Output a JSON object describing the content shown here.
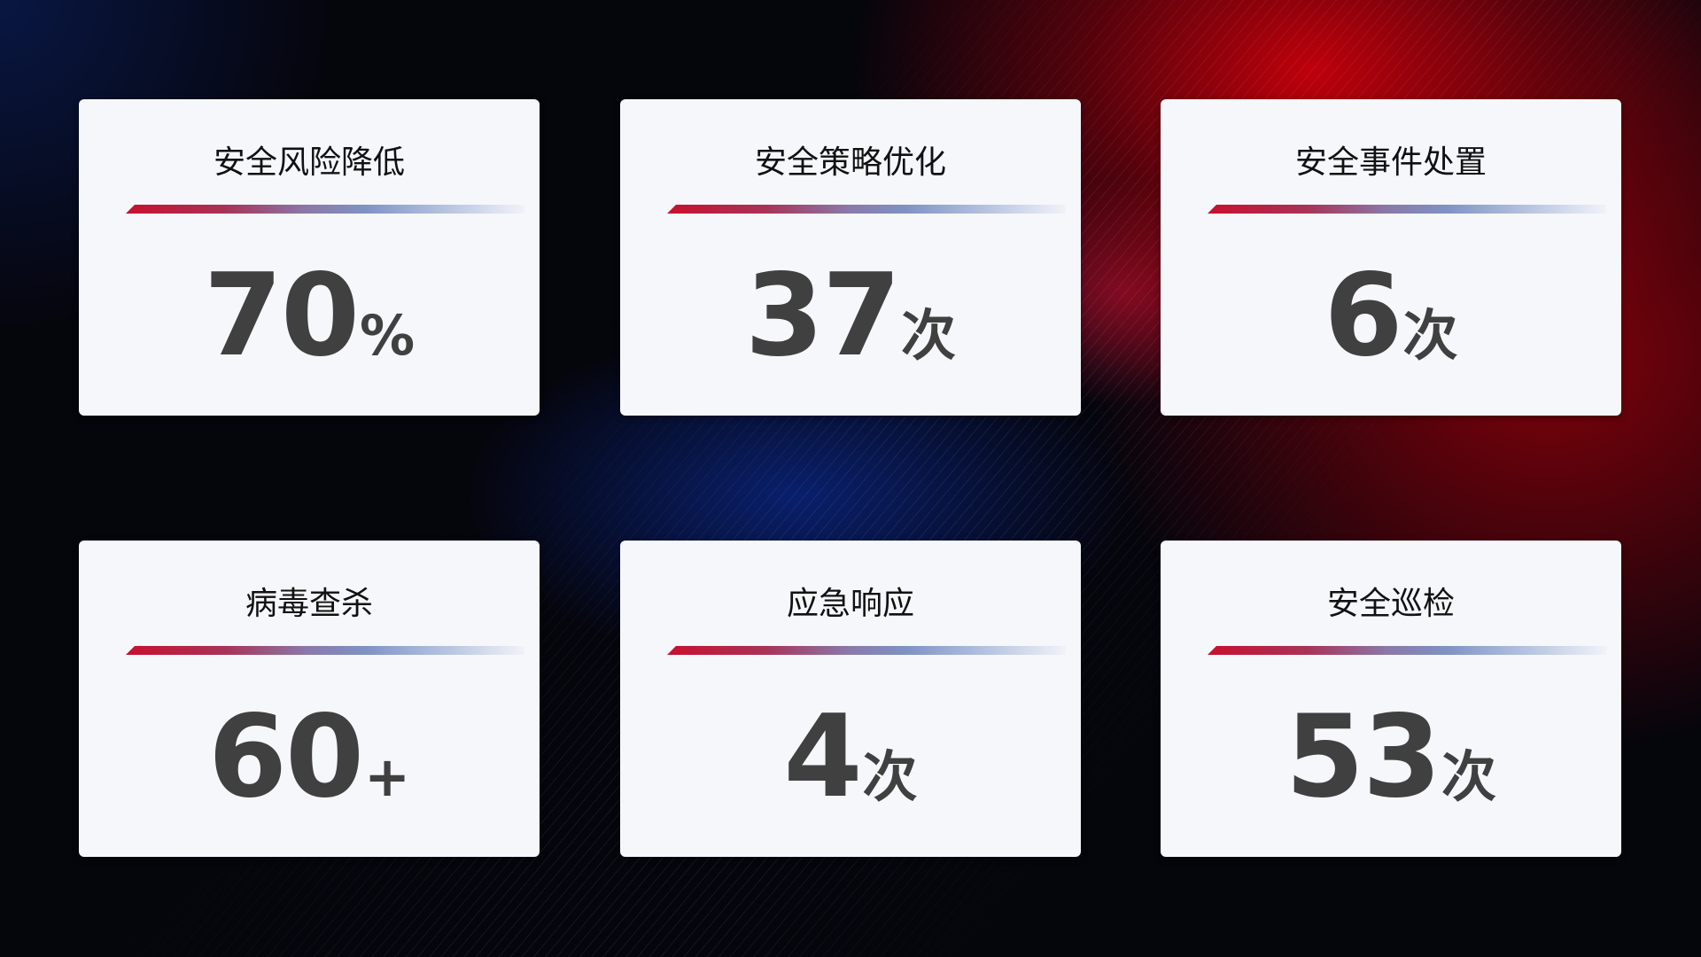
{
  "cards": [
    {
      "title": "安全风险降低",
      "value": "70",
      "unit": "%"
    },
    {
      "title": "安全策略优化",
      "value": "37",
      "unit": "次"
    },
    {
      "title": "安全事件处置",
      "value": "6",
      "unit": "次"
    },
    {
      "title": "病毒查杀",
      "value": "60",
      "unit": "+"
    },
    {
      "title": "应急响应",
      "value": "4",
      "unit": "次"
    },
    {
      "title": "安全巡检",
      "value": "53",
      "unit": "次"
    }
  ],
  "colors": {
    "accent_red": "#c8102e",
    "accent_blue": "#7f92c4",
    "card_bg": "#f6f7fb",
    "value_text": "#404040"
  }
}
